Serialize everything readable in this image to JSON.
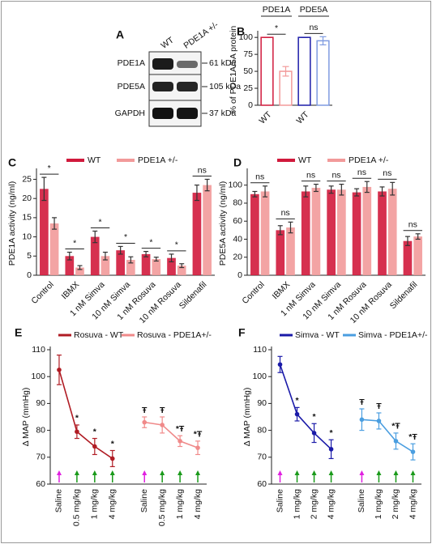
{
  "blot": {
    "label": "A",
    "lanes": [
      "WT",
      "PDE1A +/-"
    ],
    "rows": [
      "PDE1A",
      "PDE5A",
      "GAPDH"
    ],
    "sizes": [
      "61 kDa",
      "105 kDa",
      "37 kDa"
    ]
  },
  "chart_data": [
    {
      "type": "bar",
      "panel": "B",
      "group_labels": [
        "PDE1A",
        "PDE5A"
      ],
      "ylabel": "% of PDE1A/5A protein",
      "categories": [
        "WT",
        null,
        "WT",
        null
      ],
      "values": [
        100,
        50,
        100,
        95
      ],
      "errors": [
        0,
        7,
        0,
        6
      ],
      "colors": [
        "#d11a3c",
        "#f29a9a",
        "#1c1ca8",
        "#7f9be0"
      ],
      "bar_style": "outline",
      "ylim": [
        0,
        105
      ],
      "yticks": [
        0,
        25,
        50,
        75,
        100
      ],
      "annotations": [
        "*",
        "ns"
      ]
    },
    {
      "type": "bar",
      "panel": "C",
      "ylabel": "PDE1A activity (ng/ml)",
      "categories": [
        "Control",
        "IBMX",
        "1 nM Simva",
        "10 nM Simva",
        "1 nM Rosuva",
        "10 nM Rosuva",
        "Sildenafil"
      ],
      "series": [
        {
          "name": "WT",
          "color": "#d11a3c",
          "values": [
            22.5,
            5,
            10,
            6.5,
            5.5,
            4.5,
            21.5
          ],
          "errors": [
            3,
            1,
            1.5,
            1,
            0.7,
            1,
            2
          ]
        },
        {
          "name": "PDE1A +/-",
          "color": "#f29a9a",
          "values": [
            13.5,
            2,
            5,
            4,
            4.2,
            2.5,
            23.5
          ],
          "errors": [
            1.5,
            0.5,
            1,
            0.8,
            0.5,
            0.5,
            1.5
          ]
        }
      ],
      "ylim": [
        0,
        27
      ],
      "yticks": [
        0,
        5,
        10,
        15,
        20,
        25
      ],
      "annotations": [
        "*",
        "*",
        "*",
        "*",
        "*",
        "*",
        "ns"
      ]
    },
    {
      "type": "bar",
      "panel": "D",
      "ylabel": "PDE5A activity (ng/ml)",
      "categories": [
        "Control",
        "IBMX",
        "1 nM Simva",
        "10 nM Simva",
        "1 nM Rosuva",
        "10 nM Rosuva",
        "Sildenafil"
      ],
      "series": [
        {
          "name": "WT",
          "color": "#d11a3c",
          "values": [
            90,
            50,
            93,
            95,
            92,
            93,
            38
          ],
          "errors": [
            3,
            5,
            6,
            4,
            4,
            5,
            5
          ]
        },
        {
          "name": "PDE1A +/-",
          "color": "#f29a9a",
          "values": [
            93,
            53,
            97,
            95,
            98,
            96,
            43
          ],
          "errors": [
            6,
            6,
            4,
            6,
            6,
            7,
            3
          ]
        }
      ],
      "ylim": [
        0,
        115
      ],
      "yticks": [
        0,
        20,
        40,
        60,
        80,
        100
      ],
      "annotations": [
        "ns",
        "ns",
        "ns",
        "ns",
        "ns",
        "ns",
        "ns"
      ]
    },
    {
      "type": "line",
      "panel": "E",
      "ylabel": "Δ MAP (mmHg)",
      "categories": [
        "Saline",
        "0.5 mg/kg",
        "1 mg/kg",
        "4 mg/kg",
        "Saline",
        "0.5 mg/kg",
        "1 mg/kg",
        "4 mg/kg"
      ],
      "series": [
        {
          "name": "Rosuva - WT",
          "color": "#b01c24",
          "values": [
            102.5,
            79.5,
            74,
            69.5,
            null,
            null,
            null,
            null
          ],
          "errors": [
            5.5,
            2.5,
            3,
            3,
            null,
            null,
            null,
            null
          ]
        },
        {
          "name": "Rosuva - PDE1A+/-",
          "color": "#f08a8a",
          "values": [
            null,
            null,
            null,
            null,
            83,
            82,
            76,
            73.5
          ],
          "errors": [
            null,
            null,
            null,
            null,
            2,
            3,
            2,
            2.5
          ]
        }
      ],
      "ylim": [
        60,
        110
      ],
      "yticks": [
        60,
        70,
        80,
        90,
        100,
        110
      ],
      "annotations": [
        "*",
        "*",
        "*",
        "Ŧ",
        "Ŧ",
        "*Ŧ",
        "*Ŧ"
      ]
    },
    {
      "type": "line",
      "panel": "F",
      "ylabel": "Δ MAP (mmHg)",
      "categories": [
        "Saline",
        "1 mg/kg",
        "2 mg/kg",
        "4 mg/kg",
        "Saline",
        "1 mg/kg",
        "2 mg/kg",
        "4 mg/kg"
      ],
      "series": [
        {
          "name": "Simva - WT",
          "color": "#1a1aa8",
          "values": [
            104.5,
            86,
            79,
            73,
            null,
            null,
            null,
            null
          ],
          "errors": [
            3,
            2.5,
            3.5,
            3.5,
            null,
            null,
            null,
            null
          ]
        },
        {
          "name": "Simva - PDE1A+/-",
          "color": "#4a9ee0",
          "values": [
            null,
            null,
            null,
            null,
            84,
            83.5,
            76,
            72
          ],
          "errors": [
            null,
            null,
            null,
            null,
            4,
            3,
            3,
            3
          ]
        }
      ],
      "ylim": [
        60,
        110
      ],
      "yticks": [
        60,
        70,
        80,
        90,
        100,
        110
      ],
      "annotations": [
        "*",
        "*",
        "*",
        "Ŧ",
        "Ŧ",
        "*Ŧ",
        "*Ŧ"
      ]
    }
  ]
}
